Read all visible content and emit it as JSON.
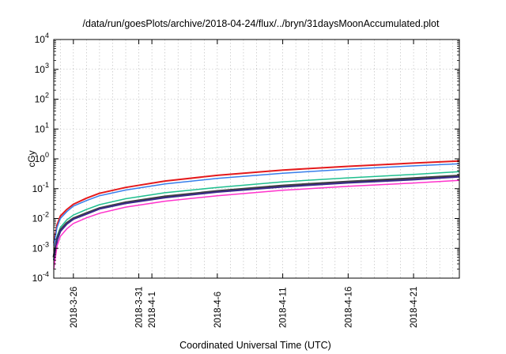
{
  "chart_data": {
    "type": "line",
    "title": "/data/run/goesPlots/archive/2018-04-24/flux/../bryn/31daysMoonAccumulated.plot",
    "xlabel": "Coordinated Universal Time (UTC)",
    "ylabel": "cGy",
    "yscale": "log",
    "ylim_exp": [
      -4,
      4
    ],
    "y_tick_labels": [
      {
        "exp": -4,
        "base": "10",
        "sup": "-4"
      },
      {
        "exp": -3,
        "base": "10",
        "sup": "-3"
      },
      {
        "exp": -2,
        "base": "10",
        "sup": "-2"
      },
      {
        "exp": -1,
        "base": "10",
        "sup": "-1"
      },
      {
        "exp": 0,
        "base": "10",
        "sup": "0"
      },
      {
        "exp": 1,
        "base": "10",
        "sup": "1"
      },
      {
        "exp": 2,
        "base": "10",
        "sup": "2"
      },
      {
        "exp": 3,
        "base": "10",
        "sup": "3"
      },
      {
        "exp": 4,
        "base": "10",
        "sup": "4"
      }
    ],
    "xlim": [
      "2018-03-24T12:00",
      "2018-04-24T12:00"
    ],
    "x_tick_labels": [
      {
        "x": "2018-03-26",
        "label": "2018-3-26"
      },
      {
        "x": "2018-03-31",
        "label": "2018-3-31"
      },
      {
        "x": "2018-04-01",
        "label": "2018-4-1"
      },
      {
        "x": "2018-04-06",
        "label": "2018-4-6"
      },
      {
        "x": "2018-04-11",
        "label": "2018-4-11"
      },
      {
        "x": "2018-04-16",
        "label": "2018-4-16"
      },
      {
        "x": "2018-04-21",
        "label": "2018-4-21"
      }
    ],
    "grid": true,
    "x": [
      "2018-03-24T12:00",
      "2018-03-24T18:00",
      "2018-03-25T00:00",
      "2018-03-25T12:00",
      "2018-03-26T00:00",
      "2018-03-27T00:00",
      "2018-03-28T00:00",
      "2018-03-30T00:00",
      "2018-04-02T00:00",
      "2018-04-06T00:00",
      "2018-04-11T00:00",
      "2018-04-16T00:00",
      "2018-04-21T00:00",
      "2018-04-24T12:00"
    ],
    "series": [
      {
        "color": "#e41a1c",
        "width": 2,
        "values": [
          0.0015,
          0.006,
          0.012,
          0.02,
          0.03,
          0.048,
          0.07,
          0.11,
          0.18,
          0.28,
          0.42,
          0.56,
          0.72,
          0.85
        ]
      },
      {
        "color": "#377eeb",
        "width": 1.5,
        "values": [
          0.0012,
          0.005,
          0.01,
          0.017,
          0.026,
          0.04,
          0.058,
          0.09,
          0.145,
          0.22,
          0.33,
          0.45,
          0.58,
          0.68
        ]
      },
      {
        "color": "#1fbf8f",
        "width": 1.5,
        "values": [
          0.0006,
          0.0025,
          0.005,
          0.009,
          0.013,
          0.02,
          0.029,
          0.046,
          0.073,
          0.11,
          0.17,
          0.23,
          0.3,
          0.37
        ]
      },
      {
        "color": "#404040",
        "width": 3,
        "values": [
          0.0005,
          0.002,
          0.004,
          0.007,
          0.01,
          0.015,
          0.022,
          0.034,
          0.054,
          0.082,
          0.125,
          0.17,
          0.22,
          0.27
        ]
      },
      {
        "color": "#3a2a8a",
        "width": 2,
        "values": [
          0.0004,
          0.0018,
          0.0037,
          0.0065,
          0.0095,
          0.014,
          0.021,
          0.032,
          0.05,
          0.077,
          0.115,
          0.157,
          0.2,
          0.25
        ]
      },
      {
        "color": "#ff33cc",
        "width": 1.5,
        "values": [
          0.0002,
          0.0012,
          0.0025,
          0.0045,
          0.0068,
          0.0105,
          0.015,
          0.024,
          0.038,
          0.058,
          0.088,
          0.12,
          0.155,
          0.19
        ]
      }
    ]
  }
}
